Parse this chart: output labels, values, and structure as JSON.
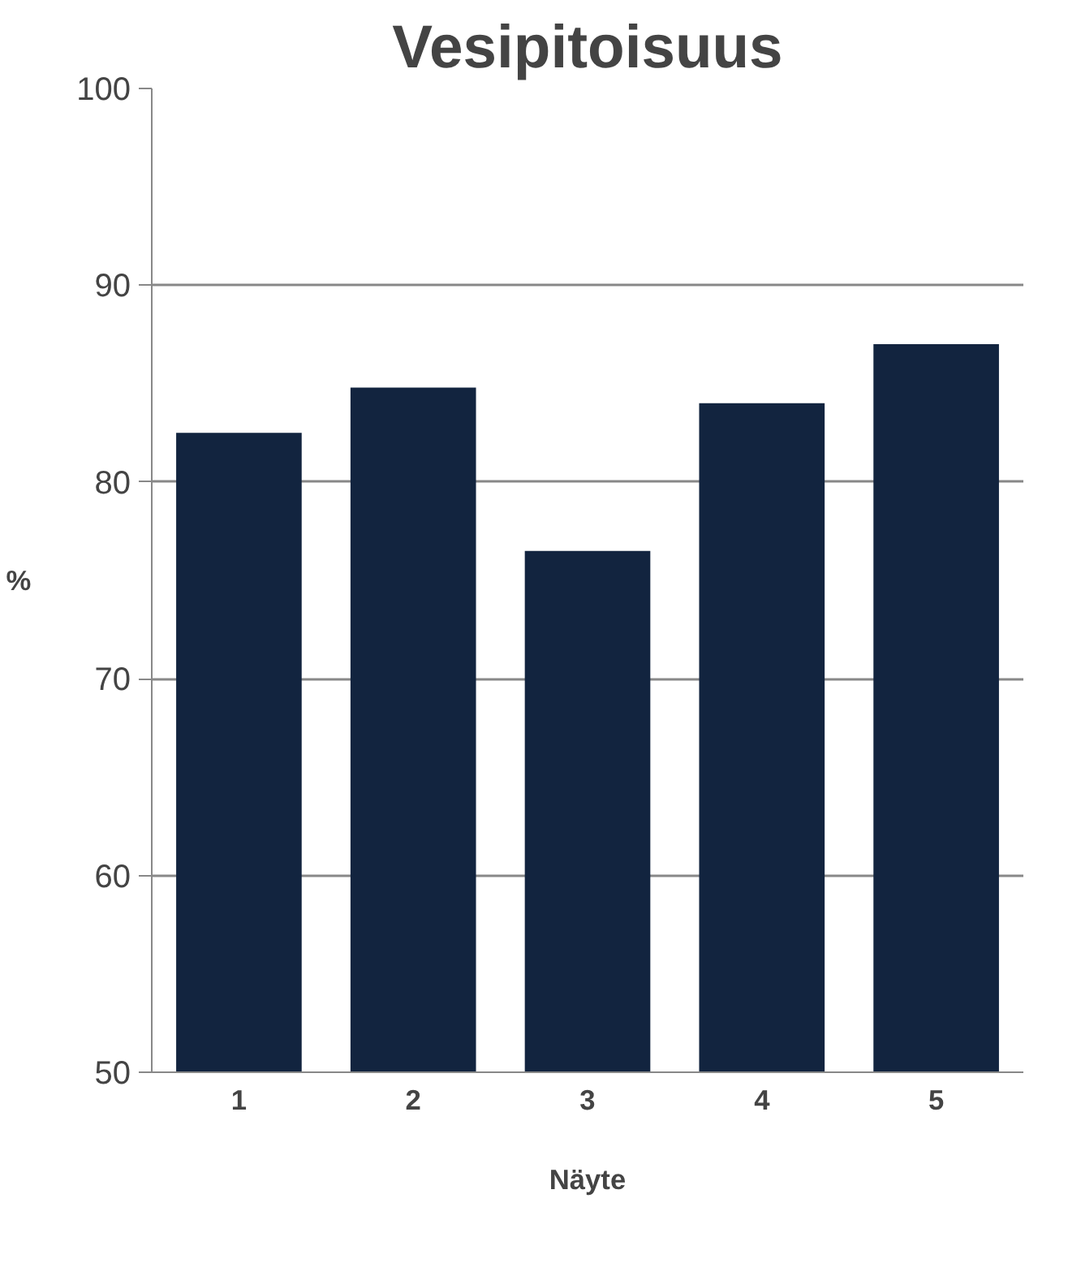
{
  "chart_data": {
    "type": "bar",
    "title": "Vesipitoisuus",
    "xlabel": "Näyte",
    "ylabel": "%",
    "categories": [
      "1",
      "2",
      "3",
      "4",
      "5"
    ],
    "values": [
      82.5,
      84.8,
      76.5,
      84.0,
      87.0
    ],
    "color": "#12243f",
    "ylim": [
      50,
      100
    ],
    "yticks": [
      50,
      60,
      70,
      80,
      90,
      100
    ],
    "grid": "y"
  }
}
